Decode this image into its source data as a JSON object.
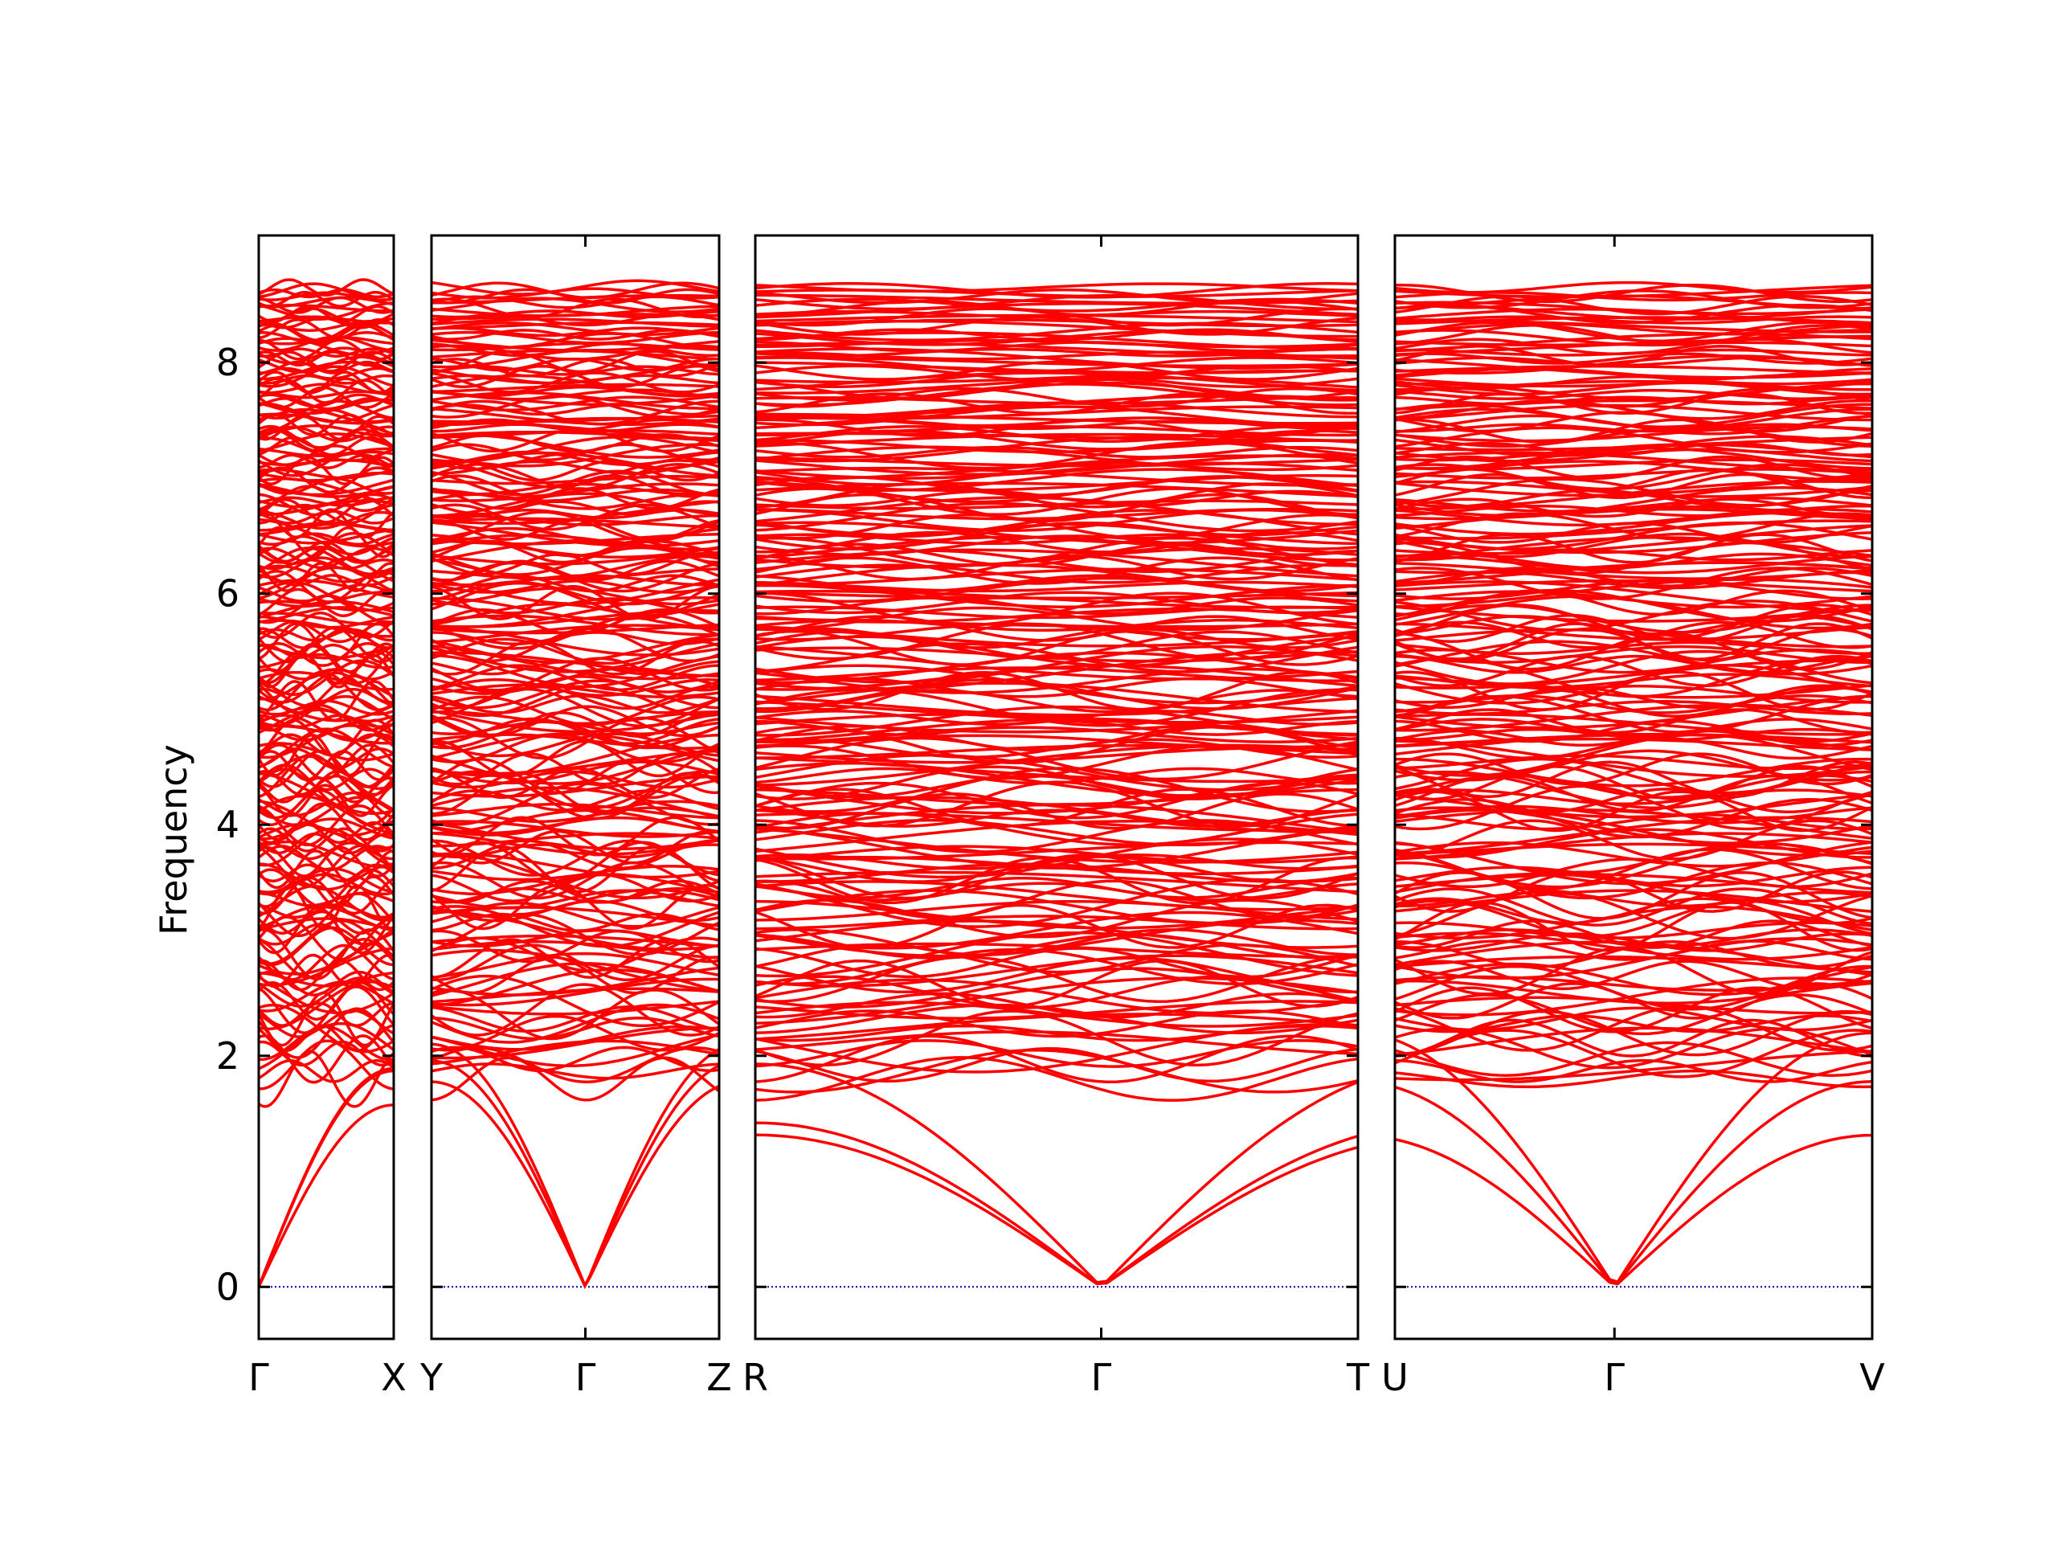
{
  "chart_data": {
    "type": "line",
    "title": "",
    "ylabel": "Frequency",
    "xlabel": "",
    "ylim": [
      -0.45,
      9.1
    ],
    "y_ticks": [
      0,
      2,
      4,
      6,
      8
    ],
    "y_tick_labels": [
      "0",
      "2",
      "4",
      "6",
      "8"
    ],
    "grid": false,
    "legend": "none",
    "colors": {
      "bands": "#ff0000",
      "zero_line": "#0000aa",
      "frame": "#000000"
    },
    "panels": [
      {
        "segments": [
          [
            "Γ",
            "X"
          ]
        ],
        "labels": [
          "Γ",
          "X"
        ],
        "label_positions": [
          0,
          1
        ]
      },
      {
        "segments": [
          [
            "Y",
            "Γ"
          ],
          [
            "Γ",
            "Z"
          ]
        ],
        "labels": [
          "Y",
          "Γ",
          "Z"
        ],
        "label_positions": [
          0,
          0.535,
          1
        ]
      },
      {
        "segments": [
          [
            "R",
            "Γ"
          ],
          [
            "Γ",
            "T"
          ]
        ],
        "labels": [
          "R",
          "Γ",
          "T"
        ],
        "label_positions": [
          0,
          0.574,
          1
        ]
      },
      {
        "segments": [
          [
            "U",
            "Γ"
          ],
          [
            "Γ",
            "V"
          ]
        ],
        "labels": [
          "U",
          "Γ",
          "V"
        ],
        "label_positions": [
          0,
          0.46,
          1
        ]
      }
    ],
    "series": [
      {
        "values_at_gamma": [
          0,
          0,
          0
        ],
        "description_of_band": "acoustic"
      }
    ],
    "band_range": {
      "acoustic_max_at_zone_edge": [
        1.3,
        2.2
      ],
      "optical_min": 1.8,
      "top_band": 8.65
    }
  }
}
